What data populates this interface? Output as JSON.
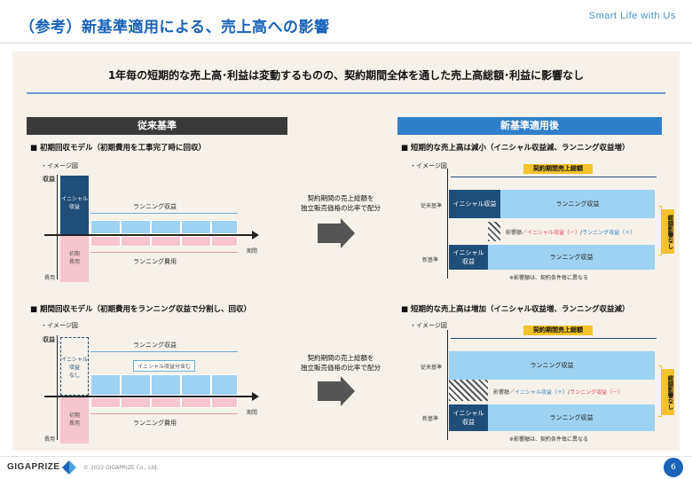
{
  "header": {
    "title": "（参考）新基準適用による、売上高への影響",
    "brand": "Smart Life with Us"
  },
  "headline": "1年毎の短期的な売上高･利益は変動するものの、契約期間全体を通した売上高総額･利益に影響なし",
  "left": {
    "header": "従来基準",
    "sec1": "■ 初期回収モデル（初期費用を工事完了時に回収）",
    "sec2": "■ 期間回収モデル（初期費用をランニング収益で分割し、回収）",
    "image_label": "・イメージ図",
    "revenue": "収益",
    "expense": "費用",
    "period": "期間",
    "initial_revenue": "イニシャル\n収益",
    "initial_revenue_none": "イニシャル\n収益\nなし",
    "initial_cost": "初期\n費用",
    "running_revenue": "ランニング収益",
    "running_cost": "ランニング費用",
    "incl_initial": "イニシャル収益分含む"
  },
  "middle": {
    "line1": "契約期間の売上総額を",
    "line2": "独立販売価格の比率で配分"
  },
  "right": {
    "header": "新基準適用後",
    "sec1": "■ 短期的な売上高は減小（イニシャル収益減、ランニング収益増）",
    "sec2": "■ 短期的な売上高は増加（イニシャル収益増、ランニング収益減）",
    "image_label": "・イメージ図",
    "total_label": "契約期間売上総額",
    "old_std": "従来基準",
    "new_std": "新基準",
    "initial_revenue": "イニシャル収益",
    "initial_revenue_2": "イニシャル\n収益",
    "running_revenue": "ランニング収益",
    "impact_prefix": "影響額／",
    "impact1_a": "イニシャル収益（－）",
    "impact1_b": "ランニング収益（＋）",
    "impact2_a": "イニシャル収益（＋）",
    "impact2_b": "ランニング収益（－）",
    "vertical": "総額影響なし",
    "note": "※影響額は、契約条件毎に異なる"
  },
  "footer": {
    "logo": "GIGAPRIZE",
    "copyright": "© 2022 GIGAPRIZE Co., Ltd.",
    "page": "6"
  },
  "colors": {
    "brand_blue": "#1a63b8",
    "dark_header": "#3a3a3a",
    "light_header": "#2f80c8",
    "initial": "#1f4e79",
    "running": "#9dd2f3",
    "cost": "#f6c5cd",
    "highlight": "#f2c32a"
  }
}
